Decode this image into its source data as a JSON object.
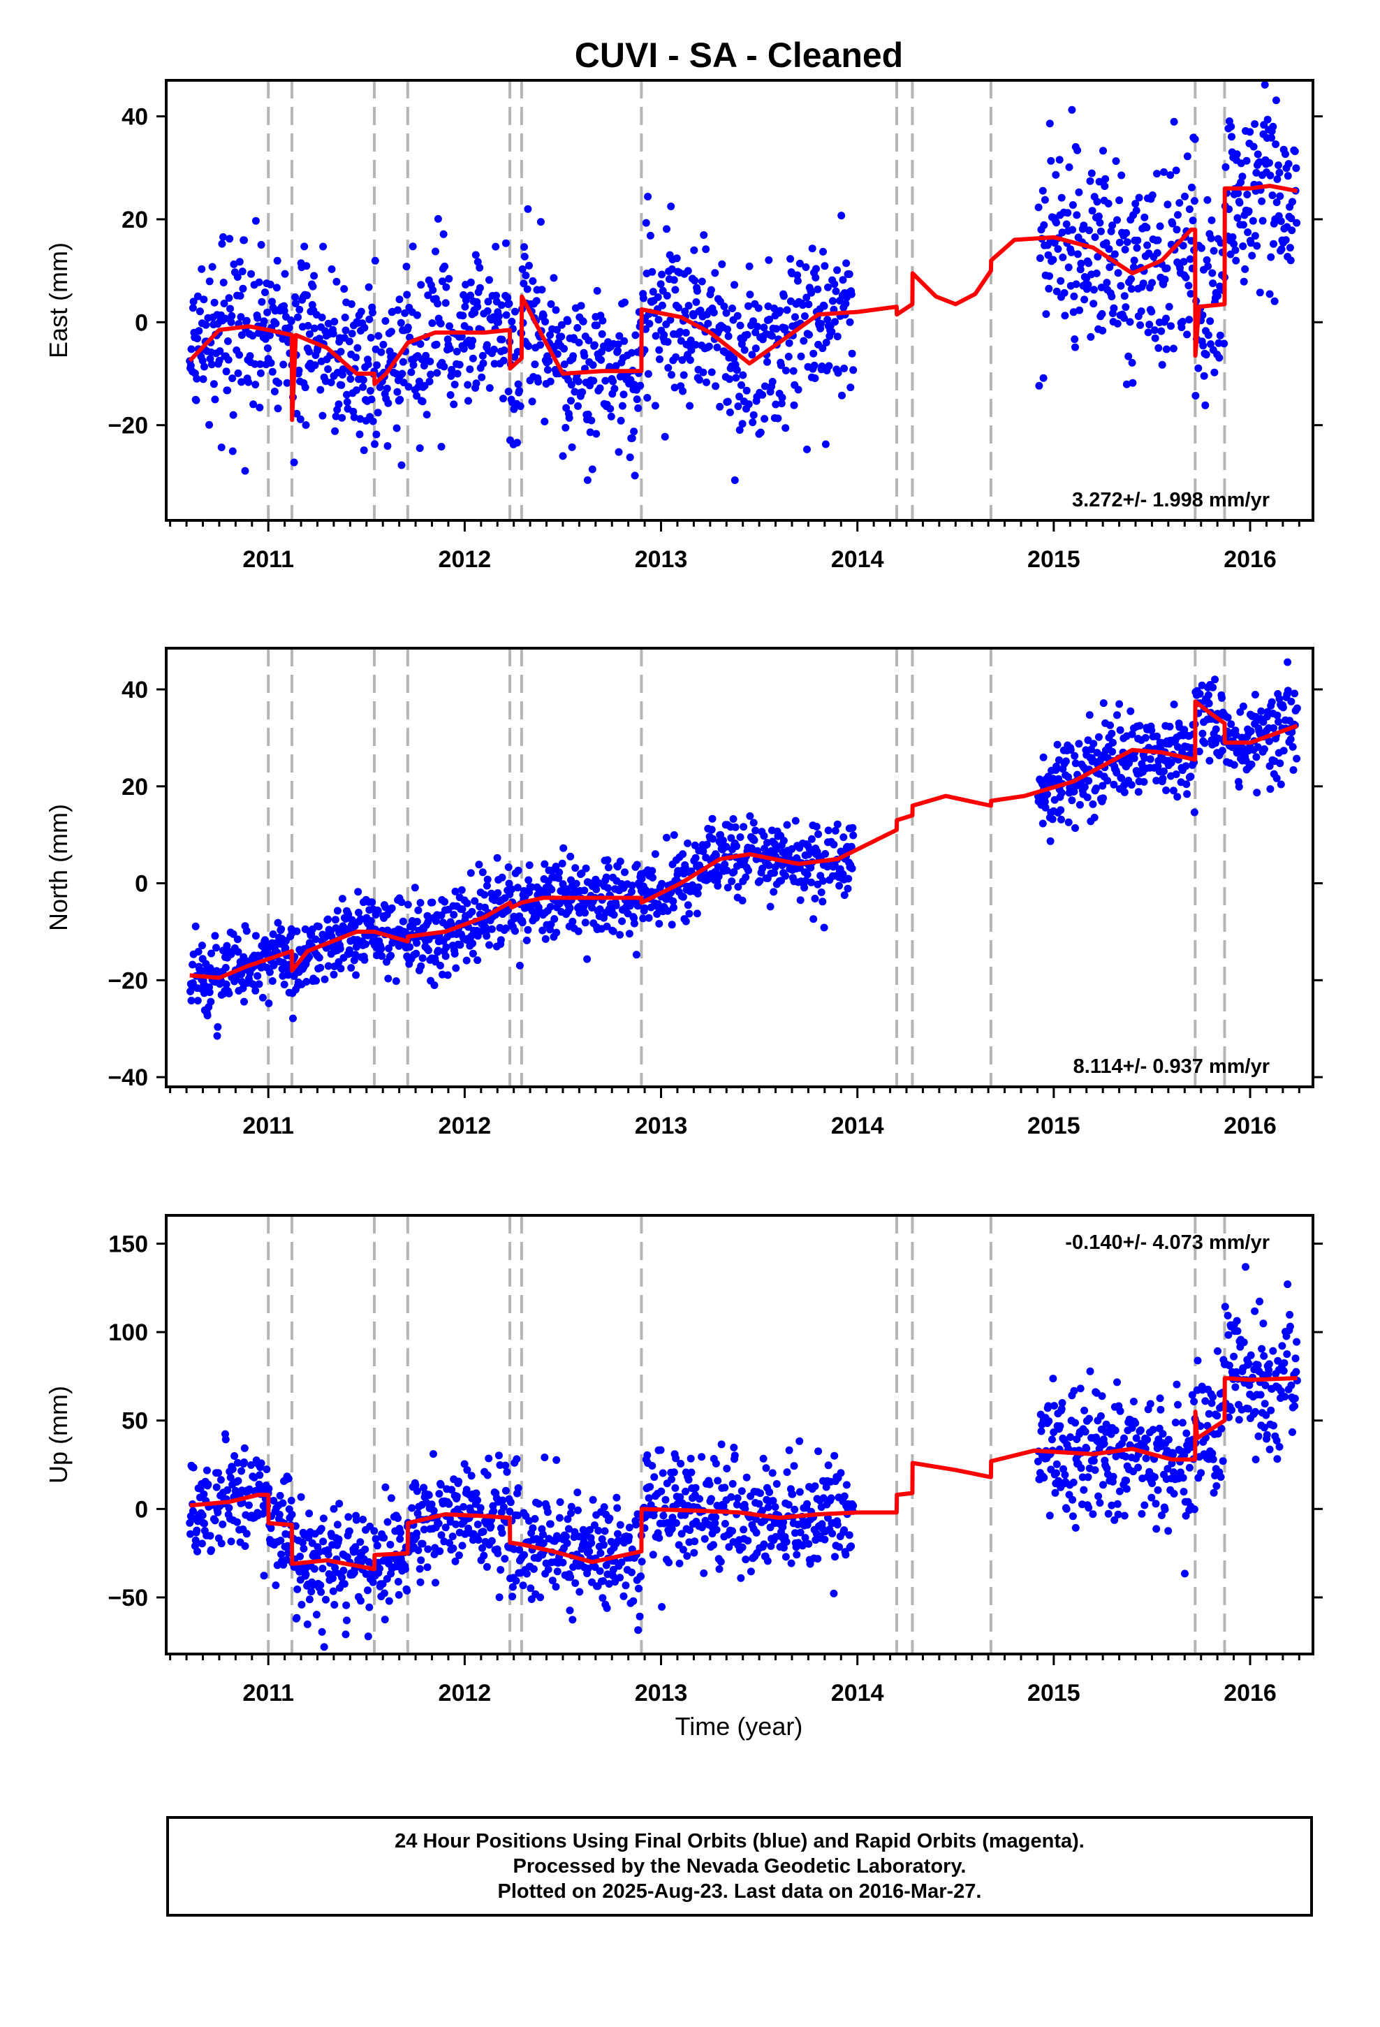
{
  "title": "CUVI  - SA - Cleaned",
  "xlabel": "Time (year)",
  "footer": {
    "line1": "24 Hour Positions Using Final Orbits (blue) and Rapid Orbits (magenta).",
    "line2": "Processed by the Nevada Geodetic Laboratory.",
    "line3": "Plotted on 2025-Aug-23. Last data on 2016-Mar-27."
  },
  "colors": {
    "final_orbits": "#0000ff",
    "model_fit": "#ff0000",
    "event_lines": "#b5b5b5",
    "frame": "#000000"
  },
  "chart_data": [
    {
      "type": "scatter",
      "component": "East",
      "ylabel": "East (mm)",
      "xlim": [
        2010.48,
        2016.32
      ],
      "ylim": [
        -38.5,
        47
      ],
      "yticks": [
        -20,
        0,
        20,
        40
      ],
      "xticks": [
        2011,
        2012,
        2013,
        2014,
        2015,
        2016
      ],
      "grid": false,
      "rate_label": "3.272+/- 1.998 mm/yr",
      "rate_label_position": "bottom-right",
      "event_lines": [
        {
          "x": 2011.0,
          "style": "dashed"
        },
        {
          "x": 2011.12,
          "style": "dashed"
        },
        {
          "x": 2011.54,
          "style": "dashed"
        },
        {
          "x": 2011.71,
          "style": "dashed"
        },
        {
          "x": 2012.23,
          "style": "dashed"
        },
        {
          "x": 2012.29,
          "style": "dashed"
        },
        {
          "x": 2012.9,
          "style": "dashed"
        },
        {
          "x": 2014.2,
          "style": "dashed"
        },
        {
          "x": 2014.28,
          "style": "dashed"
        },
        {
          "x": 2014.68,
          "style": "dashed"
        },
        {
          "x": 2015.72,
          "style": "dashed"
        },
        {
          "x": 2015.87,
          "style": "dashed"
        }
      ],
      "data_segments": [
        {
          "start": 2010.6,
          "end": 2013.98
        },
        {
          "start": 2014.92,
          "end": 2016.24
        }
      ],
      "model": [
        {
          "t": 2010.6,
          "v": -7.5
        },
        {
          "t": 2010.75,
          "v": -1.5
        },
        {
          "t": 2010.9,
          "v": -0.8
        },
        {
          "t": 2011.0,
          "v": -1.5
        },
        {
          "t": 2011.12,
          "v": -2.5
        },
        {
          "t": 2011.121,
          "v": -19
        },
        {
          "t": 2011.14,
          "v": -2.5
        },
        {
          "t": 2011.3,
          "v": -5
        },
        {
          "t": 2011.45,
          "v": -10
        },
        {
          "t": 2011.54,
          "v": -10
        },
        {
          "t": 2011.541,
          "v": -12
        },
        {
          "t": 2011.6,
          "v": -10
        },
        {
          "t": 2011.71,
          "v": -4
        },
        {
          "t": 2011.85,
          "v": -2
        },
        {
          "t": 2012.1,
          "v": -2
        },
        {
          "t": 2012.23,
          "v": -1.5
        },
        {
          "t": 2012.231,
          "v": -9
        },
        {
          "t": 2012.26,
          "v": -8
        },
        {
          "t": 2012.29,
          "v": -7
        },
        {
          "t": 2012.291,
          "v": 5
        },
        {
          "t": 2012.4,
          "v": -3
        },
        {
          "t": 2012.5,
          "v": -10
        },
        {
          "t": 2012.7,
          "v": -9.5
        },
        {
          "t": 2012.9,
          "v": -9.5
        },
        {
          "t": 2012.901,
          "v": 2.5
        },
        {
          "t": 2013.1,
          "v": 1
        },
        {
          "t": 2013.25,
          "v": -2
        },
        {
          "t": 2013.45,
          "v": -8
        },
        {
          "t": 2013.6,
          "v": -4
        },
        {
          "t": 2013.8,
          "v": 1.5
        },
        {
          "t": 2014.0,
          "v": 2
        },
        {
          "t": 2014.2,
          "v": 3
        },
        {
          "t": 2014.201,
          "v": 1.5
        },
        {
          "t": 2014.28,
          "v": 3.5
        },
        {
          "t": 2014.281,
          "v": 9.5
        },
        {
          "t": 2014.4,
          "v": 5
        },
        {
          "t": 2014.5,
          "v": 3.5
        },
        {
          "t": 2014.6,
          "v": 5.5
        },
        {
          "t": 2014.68,
          "v": 10
        },
        {
          "t": 2014.681,
          "v": 12
        },
        {
          "t": 2014.8,
          "v": 16
        },
        {
          "t": 2015.0,
          "v": 16.5
        },
        {
          "t": 2015.2,
          "v": 14.5
        },
        {
          "t": 2015.4,
          "v": 9.5
        },
        {
          "t": 2015.55,
          "v": 12
        },
        {
          "t": 2015.7,
          "v": 18
        },
        {
          "t": 2015.72,
          "v": 18
        },
        {
          "t": 2015.721,
          "v": -6.5
        },
        {
          "t": 2015.74,
          "v": 3
        },
        {
          "t": 2015.87,
          "v": 3.5
        },
        {
          "t": 2015.871,
          "v": 26
        },
        {
          "t": 2016.0,
          "v": 26
        },
        {
          "t": 2016.1,
          "v": 26.5
        },
        {
          "t": 2016.24,
          "v": 25.5
        }
      ],
      "scatter_sd": [
        [
          2010.6,
          8
        ],
        [
          2014.0,
          8
        ],
        [
          2015.7,
          10
        ],
        [
          2016.24,
          10
        ]
      ]
    },
    {
      "type": "scatter",
      "component": "North",
      "ylabel": "North (mm)",
      "xlim": [
        2010.48,
        2016.32
      ],
      "ylim": [
        -42,
        48.5
      ],
      "yticks": [
        -40,
        -20,
        0,
        20,
        40
      ],
      "xticks": [
        2011,
        2012,
        2013,
        2014,
        2015,
        2016
      ],
      "grid": false,
      "rate_label": "8.114+/- 0.937 mm/yr",
      "rate_label_position": "bottom-right",
      "event_lines": [
        {
          "x": 2011.0,
          "style": "dashed"
        },
        {
          "x": 2011.12,
          "style": "dashed"
        },
        {
          "x": 2011.54,
          "style": "dashed"
        },
        {
          "x": 2011.71,
          "style": "dashed"
        },
        {
          "x": 2012.23,
          "style": "dashed"
        },
        {
          "x": 2012.29,
          "style": "dashed"
        },
        {
          "x": 2012.9,
          "style": "dashed"
        },
        {
          "x": 2014.2,
          "style": "dashed"
        },
        {
          "x": 2014.28,
          "style": "dashed"
        },
        {
          "x": 2014.68,
          "style": "dashed"
        },
        {
          "x": 2015.72,
          "style": "dashed"
        },
        {
          "x": 2015.87,
          "style": "dashed"
        }
      ],
      "data_segments": [
        {
          "start": 2010.6,
          "end": 2013.98
        },
        {
          "start": 2014.92,
          "end": 2016.24
        }
      ],
      "model": [
        {
          "t": 2010.6,
          "v": -19
        },
        {
          "t": 2010.75,
          "v": -19.5
        },
        {
          "t": 2010.9,
          "v": -17
        },
        {
          "t": 2011.12,
          "v": -14
        },
        {
          "t": 2011.121,
          "v": -18
        },
        {
          "t": 2011.2,
          "v": -14
        },
        {
          "t": 2011.45,
          "v": -10
        },
        {
          "t": 2011.54,
          "v": -10
        },
        {
          "t": 2011.71,
          "v": -12
        },
        {
          "t": 2011.711,
          "v": -11
        },
        {
          "t": 2011.9,
          "v": -10
        },
        {
          "t": 2012.1,
          "v": -7
        },
        {
          "t": 2012.23,
          "v": -4
        },
        {
          "t": 2012.24,
          "v": -5
        },
        {
          "t": 2012.29,
          "v": -4
        },
        {
          "t": 2012.4,
          "v": -3
        },
        {
          "t": 2012.9,
          "v": -3
        },
        {
          "t": 2012.901,
          "v": -4
        },
        {
          "t": 2013.1,
          "v": 0
        },
        {
          "t": 2013.3,
          "v": 5
        },
        {
          "t": 2013.45,
          "v": 6
        },
        {
          "t": 2013.7,
          "v": 4
        },
        {
          "t": 2013.9,
          "v": 5
        },
        {
          "t": 2014.1,
          "v": 9
        },
        {
          "t": 2014.2,
          "v": 11
        },
        {
          "t": 2014.201,
          "v": 13
        },
        {
          "t": 2014.28,
          "v": 14
        },
        {
          "t": 2014.281,
          "v": 16
        },
        {
          "t": 2014.45,
          "v": 18
        },
        {
          "t": 2014.68,
          "v": 16
        },
        {
          "t": 2014.681,
          "v": 17
        },
        {
          "t": 2014.85,
          "v": 18
        },
        {
          "t": 2015.1,
          "v": 21
        },
        {
          "t": 2015.4,
          "v": 27.5
        },
        {
          "t": 2015.55,
          "v": 27
        },
        {
          "t": 2015.72,
          "v": 25.5
        },
        {
          "t": 2015.721,
          "v": 37.5
        },
        {
          "t": 2015.8,
          "v": 35
        },
        {
          "t": 2015.87,
          "v": 33
        },
        {
          "t": 2015.871,
          "v": 29
        },
        {
          "t": 2016.0,
          "v": 29
        },
        {
          "t": 2016.24,
          "v": 32.5
        }
      ],
      "scatter_sd": [
        [
          2010.6,
          4
        ],
        [
          2014.0,
          4
        ],
        [
          2015.7,
          5
        ],
        [
          2016.24,
          5
        ]
      ]
    },
    {
      "type": "scatter",
      "component": "Up",
      "ylabel": "Up (mm)",
      "xlim": [
        2010.48,
        2016.32
      ],
      "ylim": [
        -82,
        166
      ],
      "yticks": [
        -50,
        0,
        50,
        100,
        150
      ],
      "xticks": [
        2011,
        2012,
        2013,
        2014,
        2015,
        2016
      ],
      "grid": false,
      "rate_label": "-0.140+/- 4.073 mm/yr",
      "rate_label_position": "top-right",
      "event_lines": [
        {
          "x": 2011.0,
          "style": "dashed"
        },
        {
          "x": 2011.12,
          "style": "dashed"
        },
        {
          "x": 2011.54,
          "style": "dashed"
        },
        {
          "x": 2011.71,
          "style": "dashed"
        },
        {
          "x": 2012.23,
          "style": "dashed"
        },
        {
          "x": 2012.29,
          "style": "dashed"
        },
        {
          "x": 2012.9,
          "style": "dashed"
        },
        {
          "x": 2014.2,
          "style": "dashed"
        },
        {
          "x": 2014.28,
          "style": "dashed"
        },
        {
          "x": 2014.68,
          "style": "dashed"
        },
        {
          "x": 2015.72,
          "style": "dashed"
        },
        {
          "x": 2015.87,
          "style": "dashed"
        }
      ],
      "data_segments": [
        {
          "start": 2010.6,
          "end": 2013.98
        },
        {
          "start": 2014.92,
          "end": 2016.24
        }
      ],
      "model": [
        {
          "t": 2010.6,
          "v": 2
        },
        {
          "t": 2010.8,
          "v": 4
        },
        {
          "t": 2010.95,
          "v": 8
        },
        {
          "t": 2011.0,
          "v": 8
        },
        {
          "t": 2011.001,
          "v": -8
        },
        {
          "t": 2011.12,
          "v": -9
        },
        {
          "t": 2011.121,
          "v": -31
        },
        {
          "t": 2011.3,
          "v": -29
        },
        {
          "t": 2011.54,
          "v": -34
        },
        {
          "t": 2011.541,
          "v": -26
        },
        {
          "t": 2011.71,
          "v": -25
        },
        {
          "t": 2011.711,
          "v": -8
        },
        {
          "t": 2011.9,
          "v": -3
        },
        {
          "t": 2012.1,
          "v": -4
        },
        {
          "t": 2012.23,
          "v": -5
        },
        {
          "t": 2012.231,
          "v": -19
        },
        {
          "t": 2012.29,
          "v": -20
        },
        {
          "t": 2012.45,
          "v": -24
        },
        {
          "t": 2012.65,
          "v": -30
        },
        {
          "t": 2012.9,
          "v": -24
        },
        {
          "t": 2012.901,
          "v": 0
        },
        {
          "t": 2013.2,
          "v": -1
        },
        {
          "t": 2013.4,
          "v": -2
        },
        {
          "t": 2013.6,
          "v": -5
        },
        {
          "t": 2013.8,
          "v": -3
        },
        {
          "t": 2014.0,
          "v": -2
        },
        {
          "t": 2014.15,
          "v": -2
        },
        {
          "t": 2014.2,
          "v": -2
        },
        {
          "t": 2014.201,
          "v": 8
        },
        {
          "t": 2014.28,
          "v": 9
        },
        {
          "t": 2014.281,
          "v": 26
        },
        {
          "t": 2014.5,
          "v": 22
        },
        {
          "t": 2014.68,
          "v": 18
        },
        {
          "t": 2014.681,
          "v": 27
        },
        {
          "t": 2014.9,
          "v": 33
        },
        {
          "t": 2015.2,
          "v": 31
        },
        {
          "t": 2015.4,
          "v": 34
        },
        {
          "t": 2015.6,
          "v": 28
        },
        {
          "t": 2015.72,
          "v": 28
        },
        {
          "t": 2015.721,
          "v": 55
        },
        {
          "t": 2015.73,
          "v": 40
        },
        {
          "t": 2015.87,
          "v": 50
        },
        {
          "t": 2015.871,
          "v": 74
        },
        {
          "t": 2016.0,
          "v": 73
        },
        {
          "t": 2016.24,
          "v": 74
        }
      ],
      "scatter_sd": [
        [
          2010.6,
          16
        ],
        [
          2014.0,
          16
        ],
        [
          2015.7,
          18
        ],
        [
          2016.24,
          22
        ]
      ]
    }
  ]
}
